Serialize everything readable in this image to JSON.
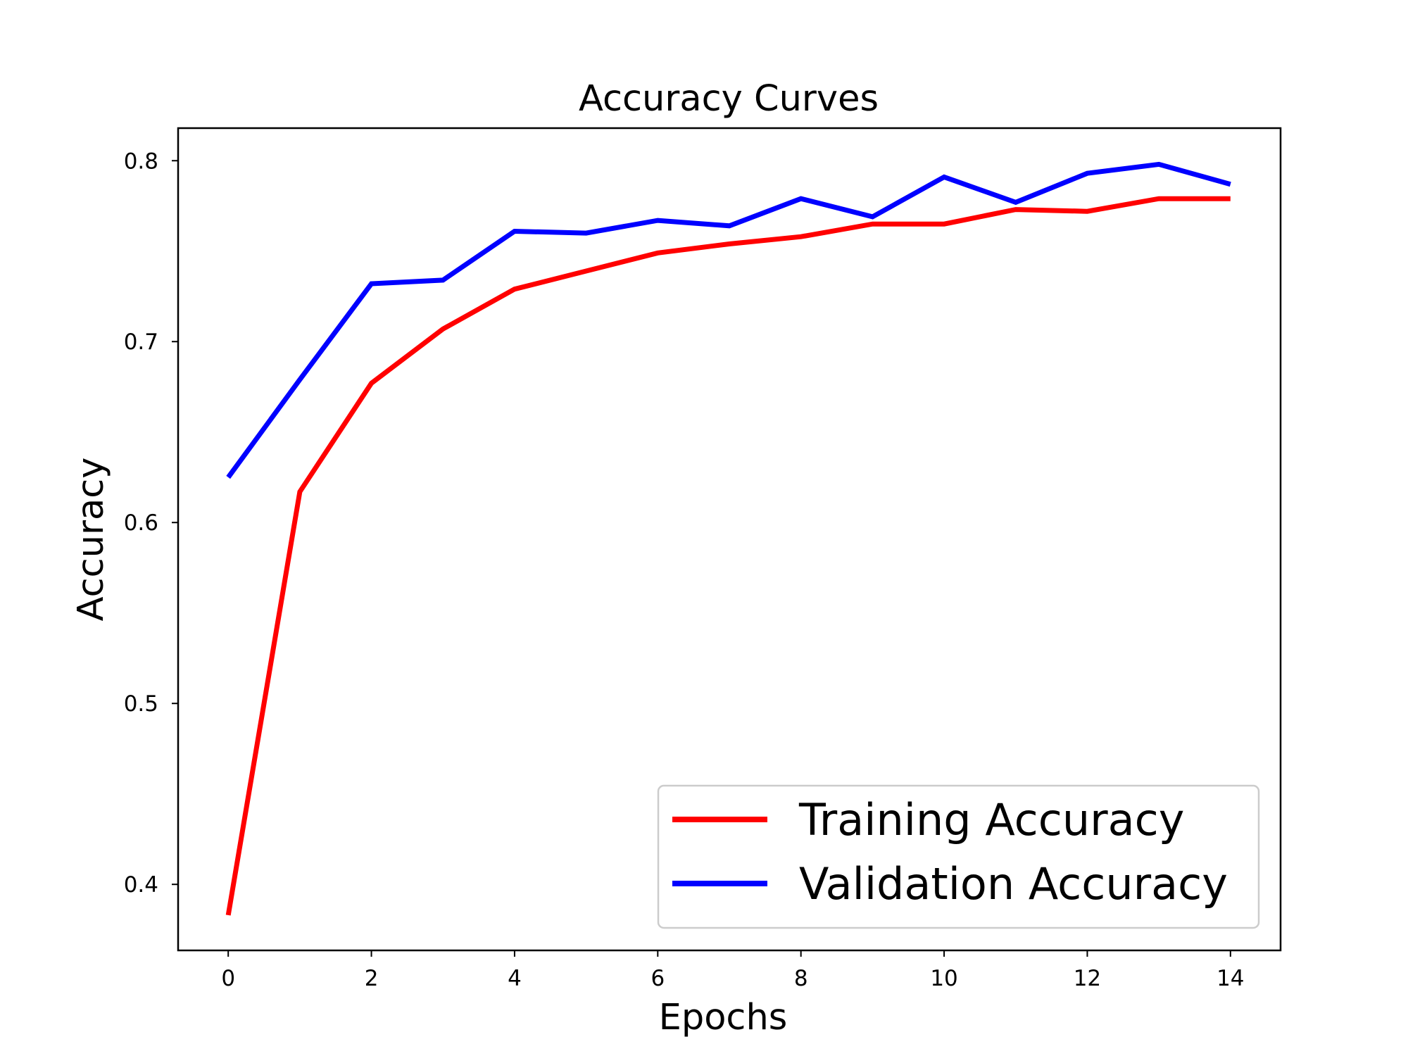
{
  "chart_data": {
    "type": "line",
    "title": "Accuracy Curves",
    "xlabel": "Epochs",
    "ylabel": "Accuracy",
    "xlim": [
      -0.7,
      14.7
    ],
    "ylim": [
      0.3635,
      0.818
    ],
    "xticks": [
      0,
      2,
      4,
      6,
      8,
      10,
      12,
      14
    ],
    "xtick_labels": [
      "0",
      "2",
      "4",
      "6",
      "8",
      "10",
      "12",
      "14"
    ],
    "yticks": [
      0.4,
      0.5,
      0.6,
      0.7,
      0.8
    ],
    "ytick_labels": [
      "0.4",
      "0.5",
      "0.6",
      "0.7",
      "0.8"
    ],
    "grid": false,
    "legend_position": "bottom-right",
    "x": [
      0,
      1,
      2,
      3,
      4,
      5,
      6,
      7,
      8,
      9,
      10,
      11,
      12,
      13,
      14
    ],
    "series": [
      {
        "name": "Training Accuracy",
        "color": "#ff0000",
        "values": [
          0.383,
          0.617,
          0.677,
          0.707,
          0.729,
          0.739,
          0.749,
          0.754,
          0.758,
          0.765,
          0.765,
          0.773,
          0.772,
          0.779,
          0.779
        ]
      },
      {
        "name": "Validation Accuracy",
        "color": "#0000ff",
        "values": [
          0.625,
          0.679,
          0.732,
          0.734,
          0.761,
          0.76,
          0.767,
          0.764,
          0.779,
          0.769,
          0.791,
          0.777,
          0.793,
          0.798,
          0.787
        ]
      }
    ]
  }
}
